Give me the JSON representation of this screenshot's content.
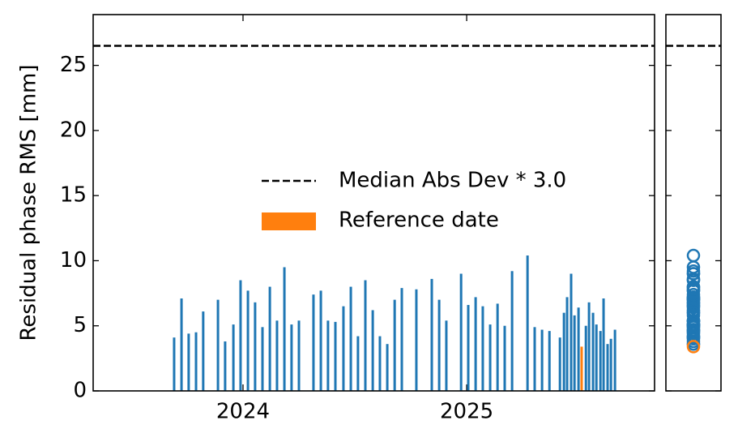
{
  "chart_data": {
    "type": "bar",
    "y_label": "Residual phase RMS [mm]",
    "xlim": [
      2023.33,
      2025.84
    ],
    "xticks": [
      2024,
      2025
    ],
    "ylim": [
      0,
      28.9
    ],
    "yticks": [
      0,
      5,
      10,
      15,
      20,
      25
    ],
    "color": "#1f77b4",
    "x": [
      2023.692,
      2023.725,
      2023.757,
      2023.79,
      2023.822,
      2023.888,
      2023.92,
      2023.957,
      2023.989,
      2024.022,
      2024.054,
      2024.087,
      2024.12,
      2024.152,
      2024.185,
      2024.217,
      2024.25,
      2024.315,
      2024.348,
      2024.38,
      2024.413,
      2024.449,
      2024.482,
      2024.514,
      2024.547,
      2024.58,
      2024.612,
      2024.645,
      2024.678,
      2024.71,
      2024.775,
      2024.844,
      2024.877,
      2024.909,
      2024.975,
      2025.007,
      2025.04,
      2025.072,
      2025.105,
      2025.138,
      2025.17,
      2025.203,
      2025.272,
      2025.304,
      2025.337,
      2025.37,
      2025.417,
      2025.435,
      2025.449,
      2025.467,
      2025.482,
      2025.5,
      2025.533,
      2025.547,
      2025.565,
      2025.58,
      2025.598,
      2025.612,
      2025.63,
      2025.645,
      2025.663
    ],
    "values": [
      4.1,
      7.1,
      4.4,
      4.5,
      6.1,
      7.0,
      3.8,
      5.1,
      8.5,
      7.7,
      6.8,
      4.9,
      8.0,
      5.4,
      9.5,
      5.1,
      5.4,
      7.4,
      7.7,
      5.4,
      5.3,
      6.5,
      8.0,
      4.2,
      8.5,
      6.2,
      4.2,
      3.6,
      7.0,
      7.9,
      7.8,
      8.6,
      7.0,
      5.4,
      9.0,
      6.6,
      7.2,
      6.5,
      5.1,
      6.7,
      5.0,
      9.2,
      10.4,
      4.9,
      4.7,
      4.6,
      4.1,
      6.0,
      7.2,
      9.0,
      5.8,
      6.4,
      5.0,
      6.8,
      6.0,
      5.1,
      4.6,
      7.1,
      3.6,
      4.0,
      4.7
    ],
    "reference": {
      "name": "Reference date",
      "color": "#ff7f0e",
      "x": [
        2025.514
      ],
      "values": [
        3.4
      ]
    },
    "threshold": {
      "name": "Median Abs Dev * 3.0",
      "color": "#000000",
      "value": 26.5
    }
  }
}
